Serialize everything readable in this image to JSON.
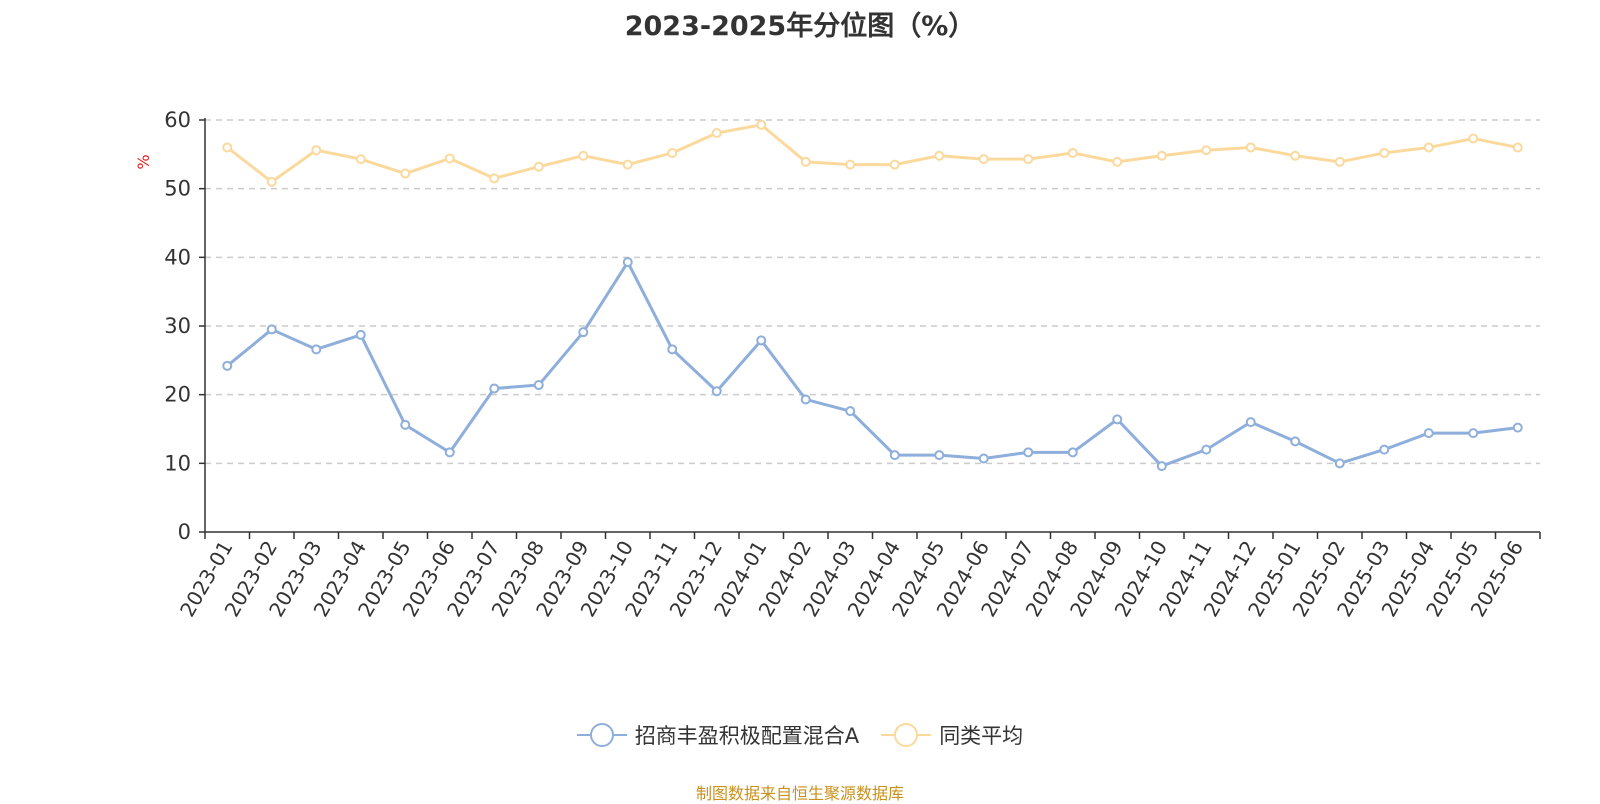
{
  "title": "2023-2025年分位图（%）",
  "source": "制图数据来自恒生聚源数据库",
  "chart_data": {
    "type": "line",
    "title": "2023-2025年分位图（%）",
    "ylabel": "%",
    "xlabel": "",
    "ylim": [
      0,
      60
    ],
    "yticks": [
      0,
      10,
      20,
      30,
      40,
      50,
      60
    ],
    "grid": true,
    "legend_position": "bottom-center",
    "categories": [
      "2023-01",
      "2023-02",
      "2023-03",
      "2023-04",
      "2023-05",
      "2023-06",
      "2023-07",
      "2023-08",
      "2023-09",
      "2023-10",
      "2023-11",
      "2023-12",
      "2024-01",
      "2024-02",
      "2024-03",
      "2024-04",
      "2024-05",
      "2024-06",
      "2024-07",
      "2024-08",
      "2024-09",
      "2024-10",
      "2024-11",
      "2024-12",
      "2025-01",
      "2025-02",
      "2025-03",
      "2025-04",
      "2025-05",
      "2025-06"
    ],
    "series": [
      {
        "name": "招商丰盈积极配置混合A",
        "color": "#8eaedb",
        "values": [
          24.2,
          29.5,
          26.6,
          28.7,
          15.6,
          11.6,
          20.9,
          21.4,
          29.1,
          39.3,
          26.6,
          20.5,
          27.9,
          19.3,
          17.6,
          11.2,
          11.2,
          10.7,
          11.6,
          11.6,
          16.4,
          9.6,
          12.0,
          16.0,
          13.2,
          10.0,
          12.0,
          14.4,
          14.4,
          15.2
        ]
      },
      {
        "name": "同类平均",
        "color": "#fbd99c",
        "values": [
          56.0,
          51.0,
          55.6,
          54.3,
          52.2,
          54.4,
          51.5,
          53.2,
          54.8,
          53.5,
          55.2,
          58.1,
          59.3,
          53.9,
          53.5,
          53.5,
          54.8,
          54.3,
          54.3,
          55.2,
          53.9,
          54.8,
          55.6,
          56.0,
          54.8,
          53.9,
          55.2,
          56.0,
          57.3,
          56.0
        ]
      }
    ]
  }
}
